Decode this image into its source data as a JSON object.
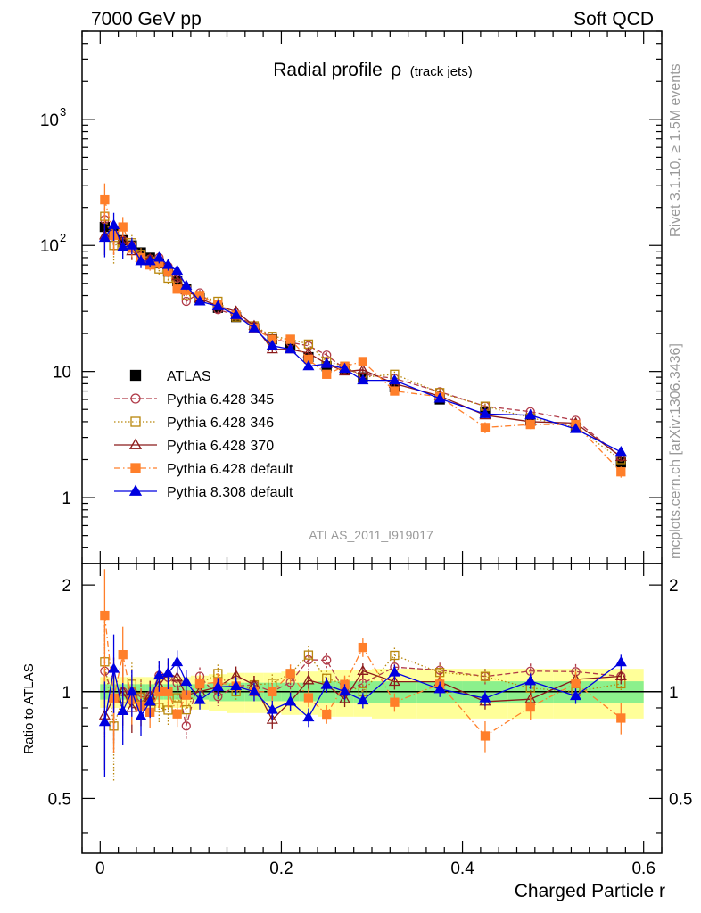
{
  "header": {
    "energy": "7000 GeV pp",
    "category": "Soft QCD"
  },
  "side_labels": {
    "rivet": "Rivet 3.1.10, ≥ 1.5M events",
    "mcplots": "mcplots.cern.ch [arXiv:1306.3436]"
  },
  "chart_data": {
    "type": "line",
    "title": "Radial profile",
    "title_symbol": "ρ",
    "title_suffix": "(track jets)",
    "analysis_id": "ATLAS_2011_I919017",
    "xlabel": "Charged Particle r",
    "ratio_ylabel": "Ratio to ATLAS",
    "xlim": [
      -0.02,
      0.62
    ],
    "ylim": [
      0.3,
      5000
    ],
    "yscale": "log",
    "ratio_ylim": [
      0.35,
      2.3
    ],
    "ratio_yscale": "log",
    "x_ticks": [
      {
        "value": 0,
        "label": "0"
      },
      {
        "value": 0.2,
        "label": "0.2"
      },
      {
        "value": 0.4,
        "label": "0.4"
      },
      {
        "value": 0.6,
        "label": "0.6"
      }
    ],
    "y_ticks": [
      {
        "value": 1,
        "label": "1"
      },
      {
        "value": 10,
        "label": "10"
      },
      {
        "value": 100,
        "label": "10",
        "exp": "2"
      },
      {
        "value": 1000,
        "label": "10",
        "exp": "3"
      }
    ],
    "ratio_ticks": [
      {
        "value": 0.5,
        "label": "0.5"
      },
      {
        "value": 1,
        "label": "1"
      },
      {
        "value": 2,
        "label": "2"
      }
    ],
    "x": [
      0.005,
      0.015,
      0.025,
      0.035,
      0.045,
      0.055,
      0.065,
      0.075,
      0.085,
      0.095,
      0.11,
      0.13,
      0.15,
      0.17,
      0.19,
      0.21,
      0.23,
      0.25,
      0.27,
      0.29,
      0.325,
      0.375,
      0.425,
      0.475,
      0.525,
      0.575
    ],
    "x_widths": [
      0.01,
      0.01,
      0.01,
      0.01,
      0.01,
      0.01,
      0.01,
      0.01,
      0.01,
      0.01,
      0.02,
      0.02,
      0.02,
      0.02,
      0.02,
      0.02,
      0.02,
      0.02,
      0.02,
      0.02,
      0.05,
      0.05,
      0.05,
      0.05,
      0.05,
      0.05
    ],
    "ref_band_inner": [
      0.05,
      0.05,
      0.05,
      0.05,
      0.05,
      0.05,
      0.05,
      0.05,
      0.05,
      0.05,
      0.05,
      0.06,
      0.06,
      0.06,
      0.06,
      0.06,
      0.06,
      0.07,
      0.07,
      0.07,
      0.07,
      0.07,
      0.07,
      0.07,
      0.07,
      0.07
    ],
    "ref_band_outer": [
      0.1,
      0.1,
      0.1,
      0.1,
      0.1,
      0.1,
      0.1,
      0.1,
      0.1,
      0.1,
      0.11,
      0.12,
      0.13,
      0.13,
      0.13,
      0.14,
      0.14,
      0.15,
      0.15,
      0.15,
      0.16,
      0.16,
      0.16,
      0.16,
      0.16,
      0.16
    ],
    "series": [
      {
        "name": "ATLAS",
        "color": "#000000",
        "marker": "square",
        "filled": true,
        "line": "none",
        "values": [
          140,
          125,
          110,
          100,
          88,
          80,
          72,
          62,
          52,
          45,
          38,
          32,
          27,
          22,
          18,
          16,
          13,
          11,
          10.5,
          9.0,
          7.5,
          6.0,
          4.8,
          4.2,
          3.6,
          1.9
        ],
        "rel_err": [
          0.04,
          0.04,
          0.04,
          0.04,
          0.04,
          0.04,
          0.04,
          0.04,
          0.04,
          0.04,
          0.04,
          0.04,
          0.04,
          0.04,
          0.04,
          0.04,
          0.04,
          0.04,
          0.04,
          0.04,
          0.04,
          0.04,
          0.04,
          0.04,
          0.04,
          0.04
        ]
      },
      {
        "name": "Pythia 6.428 345",
        "color": "#b03a48",
        "marker": "circle",
        "filled": false,
        "line": "dashed",
        "values": [
          160,
          120,
          110,
          100,
          85,
          78,
          80,
          68,
          55,
          36,
          42,
          31,
          28,
          23,
          18,
          17,
          16,
          13.5,
          10.5,
          9.5,
          8.8,
          6.9,
          5.3,
          4.8,
          4.1,
          2.1
        ],
        "rel_err": [
          0.35,
          0.3,
          0.2,
          0.15,
          0.12,
          0.1,
          0.1,
          0.1,
          0.08,
          0.08,
          0.06,
          0.06,
          0.06,
          0.06,
          0.06,
          0.06,
          0.06,
          0.05,
          0.05,
          0.05,
          0.05,
          0.05,
          0.05,
          0.05,
          0.05,
          0.05
        ]
      },
      {
        "name": "Pythia 6.428 346",
        "color": "#b8860b",
        "marker": "square",
        "filled": false,
        "line": "dotted",
        "values": [
          170,
          100,
          105,
          105,
          85,
          75,
          65,
          55,
          50,
          40,
          40,
          36,
          27,
          23,
          19,
          18,
          16.5,
          12,
          11,
          9.0,
          9.5,
          6.8,
          5.3,
          4.3,
          3.6,
          2.0
        ],
        "rel_err": [
          0.35,
          0.3,
          0.2,
          0.15,
          0.12,
          0.1,
          0.1,
          0.1,
          0.08,
          0.08,
          0.06,
          0.06,
          0.06,
          0.06,
          0.06,
          0.06,
          0.06,
          0.05,
          0.05,
          0.05,
          0.05,
          0.05,
          0.05,
          0.05,
          0.05,
          0.05
        ]
      },
      {
        "name": "Pythia 6.428 370",
        "color": "#8b1a1a",
        "marker": "triangle",
        "filled": false,
        "line": "solid",
        "values": [
          120,
          120,
          110,
          90,
          80,
          78,
          75,
          70,
          57,
          44,
          38,
          33,
          30,
          23,
          15,
          15,
          14,
          11.5,
          10,
          10.3,
          8.0,
          6.4,
          4.5,
          4.0,
          3.9,
          2.1
        ],
        "rel_err": [
          0.3,
          0.25,
          0.2,
          0.15,
          0.12,
          0.1,
          0.1,
          0.1,
          0.08,
          0.08,
          0.06,
          0.06,
          0.06,
          0.06,
          0.06,
          0.06,
          0.06,
          0.05,
          0.05,
          0.05,
          0.05,
          0.05,
          0.05,
          0.05,
          0.05,
          0.05
        ]
      },
      {
        "name": "Pythia 6.428 default",
        "color": "#ff7f2a",
        "marker": "square",
        "filled": true,
        "line": "dashdot",
        "values": [
          230,
          120,
          140,
          95,
          80,
          70,
          72,
          62,
          45,
          44,
          40,
          34,
          28,
          22,
          18,
          18,
          12.5,
          9.5,
          11,
          12,
          7.0,
          6.3,
          3.6,
          3.8,
          3.8,
          1.6
        ],
        "rel_err": [
          0.35,
          0.3,
          0.2,
          0.15,
          0.12,
          0.1,
          0.1,
          0.1,
          0.08,
          0.08,
          0.06,
          0.06,
          0.06,
          0.06,
          0.06,
          0.06,
          0.06,
          0.06,
          0.06,
          0.06,
          0.06,
          0.06,
          0.1,
          0.08,
          0.08,
          0.1
        ]
      },
      {
        "name": "Pythia 8.308 default",
        "color": "#0000e0",
        "marker": "triangle",
        "filled": true,
        "line": "solid",
        "values": [
          115,
          145,
          97,
          100,
          75,
          75,
          80,
          70,
          63,
          48,
          36,
          33,
          28,
          22,
          16,
          15,
          11,
          11.5,
          10.5,
          8.5,
          8.5,
          6.1,
          4.6,
          4.5,
          3.5,
          2.3
        ],
        "rel_err": [
          0.3,
          0.25,
          0.2,
          0.15,
          0.12,
          0.1,
          0.1,
          0.1,
          0.08,
          0.08,
          0.06,
          0.06,
          0.06,
          0.06,
          0.06,
          0.06,
          0.06,
          0.05,
          0.05,
          0.05,
          0.05,
          0.05,
          0.05,
          0.05,
          0.05,
          0.05
        ]
      }
    ]
  }
}
